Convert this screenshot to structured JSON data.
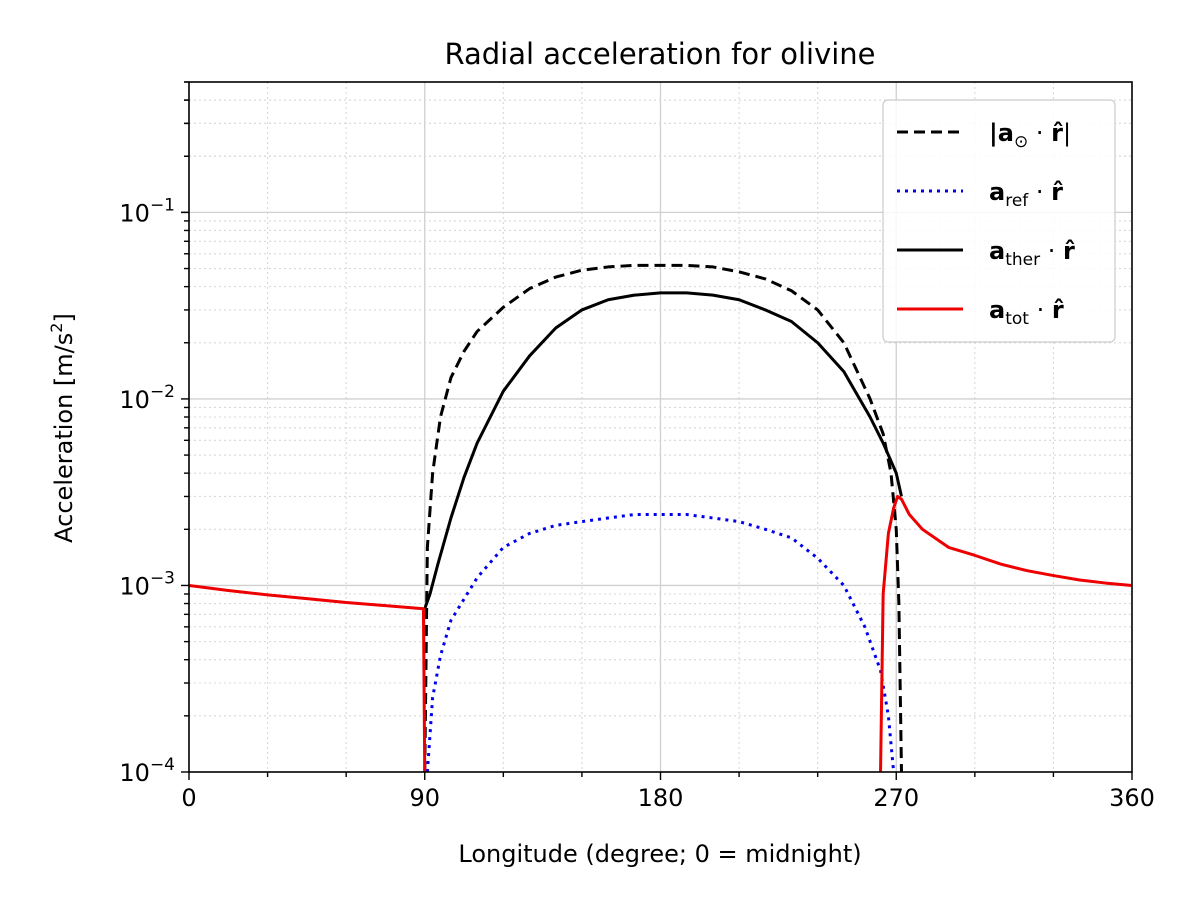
{
  "chart_data": {
    "type": "line",
    "title": "Radial acceleration for olivine",
    "xlabel": "Longitude (degree; 0 = midnight)",
    "ylabel": "Acceleration [m/s",
    "ylabel_sup": "2",
    "ylabel_end": "]",
    "xlim": [
      0,
      360
    ],
    "ylim": [
      0.0001,
      0.5
    ],
    "yscale": "log",
    "grid": "on (major solid, minor dotted)",
    "legend_position": "top-right",
    "x_ticks": [
      "0",
      "90",
      "180",
      "270",
      "360"
    ],
    "y_ticks": [
      {
        "base": "10",
        "exp": "−1",
        "value": 0.1
      },
      {
        "base": "10",
        "exp": "−2",
        "value": 0.01
      },
      {
        "base": "10",
        "exp": "−3",
        "value": 0.001
      },
      {
        "base": "10",
        "exp": "−4",
        "value": 0.0001
      }
    ],
    "series": [
      {
        "name": "|a⊙ · r̂|",
        "color": "#000000",
        "style": "dashed",
        "points": [
          [
            90,
            0.0001
          ],
          [
            91,
            0.0016
          ],
          [
            93,
            0.004
          ],
          [
            96,
            0.008
          ],
          [
            100,
            0.013
          ],
          [
            105,
            0.018
          ],
          [
            110,
            0.023
          ],
          [
            120,
            0.031
          ],
          [
            130,
            0.039
          ],
          [
            140,
            0.045
          ],
          [
            150,
            0.049
          ],
          [
            160,
            0.051
          ],
          [
            170,
            0.052
          ],
          [
            180,
            0.052
          ],
          [
            190,
            0.052
          ],
          [
            200,
            0.051
          ],
          [
            210,
            0.048
          ],
          [
            220,
            0.044
          ],
          [
            230,
            0.038
          ],
          [
            240,
            0.03
          ],
          [
            250,
            0.02
          ],
          [
            260,
            0.01
          ],
          [
            265,
            0.0065
          ],
          [
            268,
            0.004
          ],
          [
            270,
            0.002
          ],
          [
            271,
            0.0008
          ],
          [
            272,
            0.0001
          ]
        ]
      },
      {
        "name": "a_ref · r̂",
        "color": "#0000ee",
        "style": "dotted",
        "points": [
          [
            91,
            0.0001
          ],
          [
            93,
            0.00025
          ],
          [
            96,
            0.00042
          ],
          [
            100,
            0.00065
          ],
          [
            110,
            0.0011
          ],
          [
            120,
            0.0016
          ],
          [
            130,
            0.0019
          ],
          [
            140,
            0.0021
          ],
          [
            150,
            0.0022
          ],
          [
            160,
            0.0023
          ],
          [
            170,
            0.0024
          ],
          [
            180,
            0.0024
          ],
          [
            190,
            0.0024
          ],
          [
            200,
            0.0023
          ],
          [
            210,
            0.0022
          ],
          [
            220,
            0.002
          ],
          [
            230,
            0.0018
          ],
          [
            240,
            0.0014
          ],
          [
            250,
            0.001
          ],
          [
            258,
            0.0006
          ],
          [
            264,
            0.00035
          ],
          [
            267,
            0.0002
          ],
          [
            269,
            0.0001
          ]
        ]
      },
      {
        "name": "a_ther · r̂",
        "color": "#000000",
        "style": "solid",
        "points": [
          [
            90,
            0.00075
          ],
          [
            92,
            0.0009
          ],
          [
            95,
            0.0013
          ],
          [
            100,
            0.0023
          ],
          [
            105,
            0.0038
          ],
          [
            110,
            0.0058
          ],
          [
            120,
            0.011
          ],
          [
            130,
            0.017
          ],
          [
            140,
            0.024
          ],
          [
            150,
            0.03
          ],
          [
            160,
            0.034
          ],
          [
            170,
            0.036
          ],
          [
            180,
            0.037
          ],
          [
            190,
            0.037
          ],
          [
            200,
            0.036
          ],
          [
            210,
            0.034
          ],
          [
            220,
            0.03
          ],
          [
            230,
            0.026
          ],
          [
            240,
            0.02
          ],
          [
            250,
            0.014
          ],
          [
            260,
            0.008
          ],
          [
            265,
            0.0058
          ],
          [
            270,
            0.004
          ],
          [
            272,
            0.003
          ]
        ]
      },
      {
        "name": "a_tot · r̂",
        "color": "#ee0000",
        "style": "solid",
        "points": [
          [
            0,
            0.001
          ],
          [
            15,
            0.00094
          ],
          [
            30,
            0.00089
          ],
          [
            45,
            0.00085
          ],
          [
            60,
            0.00081
          ],
          [
            75,
            0.00078
          ],
          [
            89.5,
            0.00075
          ],
          [
            90,
            0.0001
          ]
        ],
        "points2": [
          [
            264,
            0.0001
          ],
          [
            265,
            0.0009
          ],
          [
            267,
            0.0019
          ],
          [
            269,
            0.0026
          ],
          [
            270.5,
            0.003
          ],
          [
            272,
            0.0029
          ],
          [
            275,
            0.0024
          ],
          [
            280,
            0.002
          ],
          [
            290,
            0.0016
          ],
          [
            300,
            0.00145
          ],
          [
            310,
            0.0013
          ],
          [
            320,
            0.0012
          ],
          [
            330,
            0.00113
          ],
          [
            340,
            0.00107
          ],
          [
            350,
            0.00103
          ],
          [
            360,
            0.001
          ]
        ]
      }
    ]
  },
  "legend": [
    {
      "bold": "|a",
      "sub": "⊙",
      "dot": " · ",
      "hat": "r̂",
      "tail": "|"
    },
    {
      "bold": "a",
      "sub": "ref",
      "dot": " · ",
      "hat": "r̂",
      "tail": ""
    },
    {
      "bold": "a",
      "sub": "ther",
      "dot": " · ",
      "hat": "r̂",
      "tail": ""
    },
    {
      "bold": "a",
      "sub": "tot",
      "dot": " · ",
      "hat": "r̂",
      "tail": ""
    }
  ]
}
